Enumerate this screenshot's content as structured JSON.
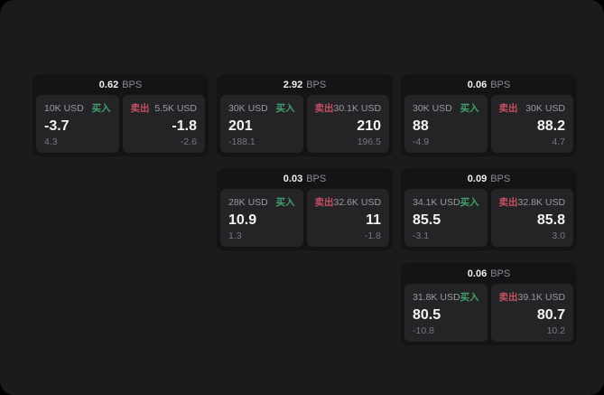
{
  "labels": {
    "bps": "BPS",
    "buy": "买入",
    "sell": "卖出"
  },
  "colors": {
    "page_bg": "#1b1b1d",
    "card_bg": "#141416",
    "panel_bg": "#242427",
    "buy": "#40a06c",
    "sell": "#c44f62"
  },
  "cards": [
    {
      "bps": "0.62",
      "buy": {
        "size": "10K USD",
        "value": "-3.7",
        "sub": "4.3"
      },
      "sell": {
        "size": "5.5K USD",
        "value": "-1.8",
        "sub": "-2.6"
      }
    },
    {
      "bps": "2.92",
      "buy": {
        "size": "30K USD",
        "value": "201",
        "sub": "-188.1"
      },
      "sell": {
        "size": "30.1K USD",
        "value": "210",
        "sub": "196.5"
      }
    },
    {
      "bps": "0.06",
      "buy": {
        "size": "30K USD",
        "value": "88",
        "sub": "-4.9"
      },
      "sell": {
        "size": "30K USD",
        "value": "88.2",
        "sub": "4.7"
      }
    },
    {
      "bps": "0.03",
      "buy": {
        "size": "28K USD",
        "value": "10.9",
        "sub": "1.3"
      },
      "sell": {
        "size": "32.6K USD",
        "value": "11",
        "sub": "-1.8"
      }
    },
    {
      "bps": "0.09",
      "buy": {
        "size": "34.1K USD",
        "value": "85.5",
        "sub": "-3.1"
      },
      "sell": {
        "size": "32.8K USD",
        "value": "85.8",
        "sub": "3.0"
      }
    },
    {
      "bps": "0.06",
      "buy": {
        "size": "31.8K USD",
        "value": "80.5",
        "sub": "-10.8"
      },
      "sell": {
        "size": "39.1K USD",
        "value": "80.7",
        "sub": "10.2"
      }
    }
  ]
}
